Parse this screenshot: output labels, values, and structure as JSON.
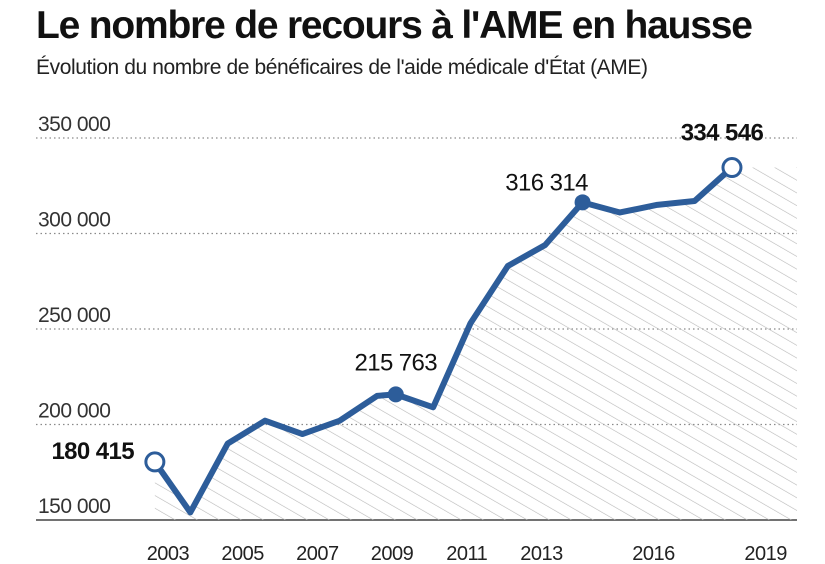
{
  "header": {
    "title": "Le nombre de recours à l'AME en hausse",
    "subtitle": "Évolution du nombre de bénéficaires de l'aide médicale d'État (AME)"
  },
  "colors": {
    "line": "#2d5d9a",
    "marker_fill": "#2d5d9a",
    "marker_open_fill": "#ffffff",
    "grid": "#8a8a8a",
    "hatch": "#b8b8b8"
  },
  "chart_data": {
    "type": "area",
    "title": "Le nombre de recours à l'AME en hausse",
    "subtitle": "Évolution du nombre de bénéficaires de l'aide médicale d'État (AME)",
    "xlabel": "",
    "ylabel": "",
    "ylim": [
      150000,
      350000
    ],
    "xlim": [
      2002.6,
      2019.6
    ],
    "grid": true,
    "y_ticks": [
      {
        "value": 150000,
        "label": "150 000"
      },
      {
        "value": 200000,
        "label": "200 000"
      },
      {
        "value": 250000,
        "label": "250 000"
      },
      {
        "value": 300000,
        "label": "300 000"
      },
      {
        "value": 350000,
        "label": "350 000"
      }
    ],
    "x_ticks": [
      {
        "value": 2003,
        "label": "2003"
      },
      {
        "value": 2005,
        "label": "2005"
      },
      {
        "value": 2007,
        "label": "2007"
      },
      {
        "value": 2009,
        "label": "2009"
      },
      {
        "value": 2011,
        "label": "2011"
      },
      {
        "value": 2013,
        "label": "2013"
      },
      {
        "value": 2016,
        "label": "2016"
      },
      {
        "value": 2019,
        "label": "2019"
      }
    ],
    "series": [
      {
        "points": [
          {
            "x": 2002.65,
            "y": 180415
          },
          {
            "x": 2003.6,
            "y": 154000
          },
          {
            "x": 2004.6,
            "y": 190000
          },
          {
            "x": 2005.6,
            "y": 202000
          },
          {
            "x": 2006.6,
            "y": 195000
          },
          {
            "x": 2007.6,
            "y": 202000
          },
          {
            "x": 2008.6,
            "y": 215000
          },
          {
            "x": 2009.1,
            "y": 215763
          },
          {
            "x": 2010.1,
            "y": 209000
          },
          {
            "x": 2011.1,
            "y": 253000
          },
          {
            "x": 2012.1,
            "y": 283000
          },
          {
            "x": 2013.1,
            "y": 294000
          },
          {
            "x": 2014.1,
            "y": 316314
          },
          {
            "x": 2015.1,
            "y": 311000
          },
          {
            "x": 2016.1,
            "y": 315000
          },
          {
            "x": 2017.1,
            "y": 317000
          },
          {
            "x": 2018.1,
            "y": 334546
          }
        ]
      }
    ],
    "annotations": [
      {
        "point_index": 0,
        "text": "180 415",
        "bold": true,
        "marker": "open",
        "position": "left"
      },
      {
        "point_index": 7,
        "text": "215 763",
        "bold": false,
        "marker": "filled",
        "position": "above"
      },
      {
        "point_index": 12,
        "text": "316 314",
        "bold": false,
        "marker": "filled",
        "position": "above-left"
      },
      {
        "point_index": 16,
        "text": "334 546",
        "bold": true,
        "marker": "open",
        "position": "above"
      }
    ]
  }
}
